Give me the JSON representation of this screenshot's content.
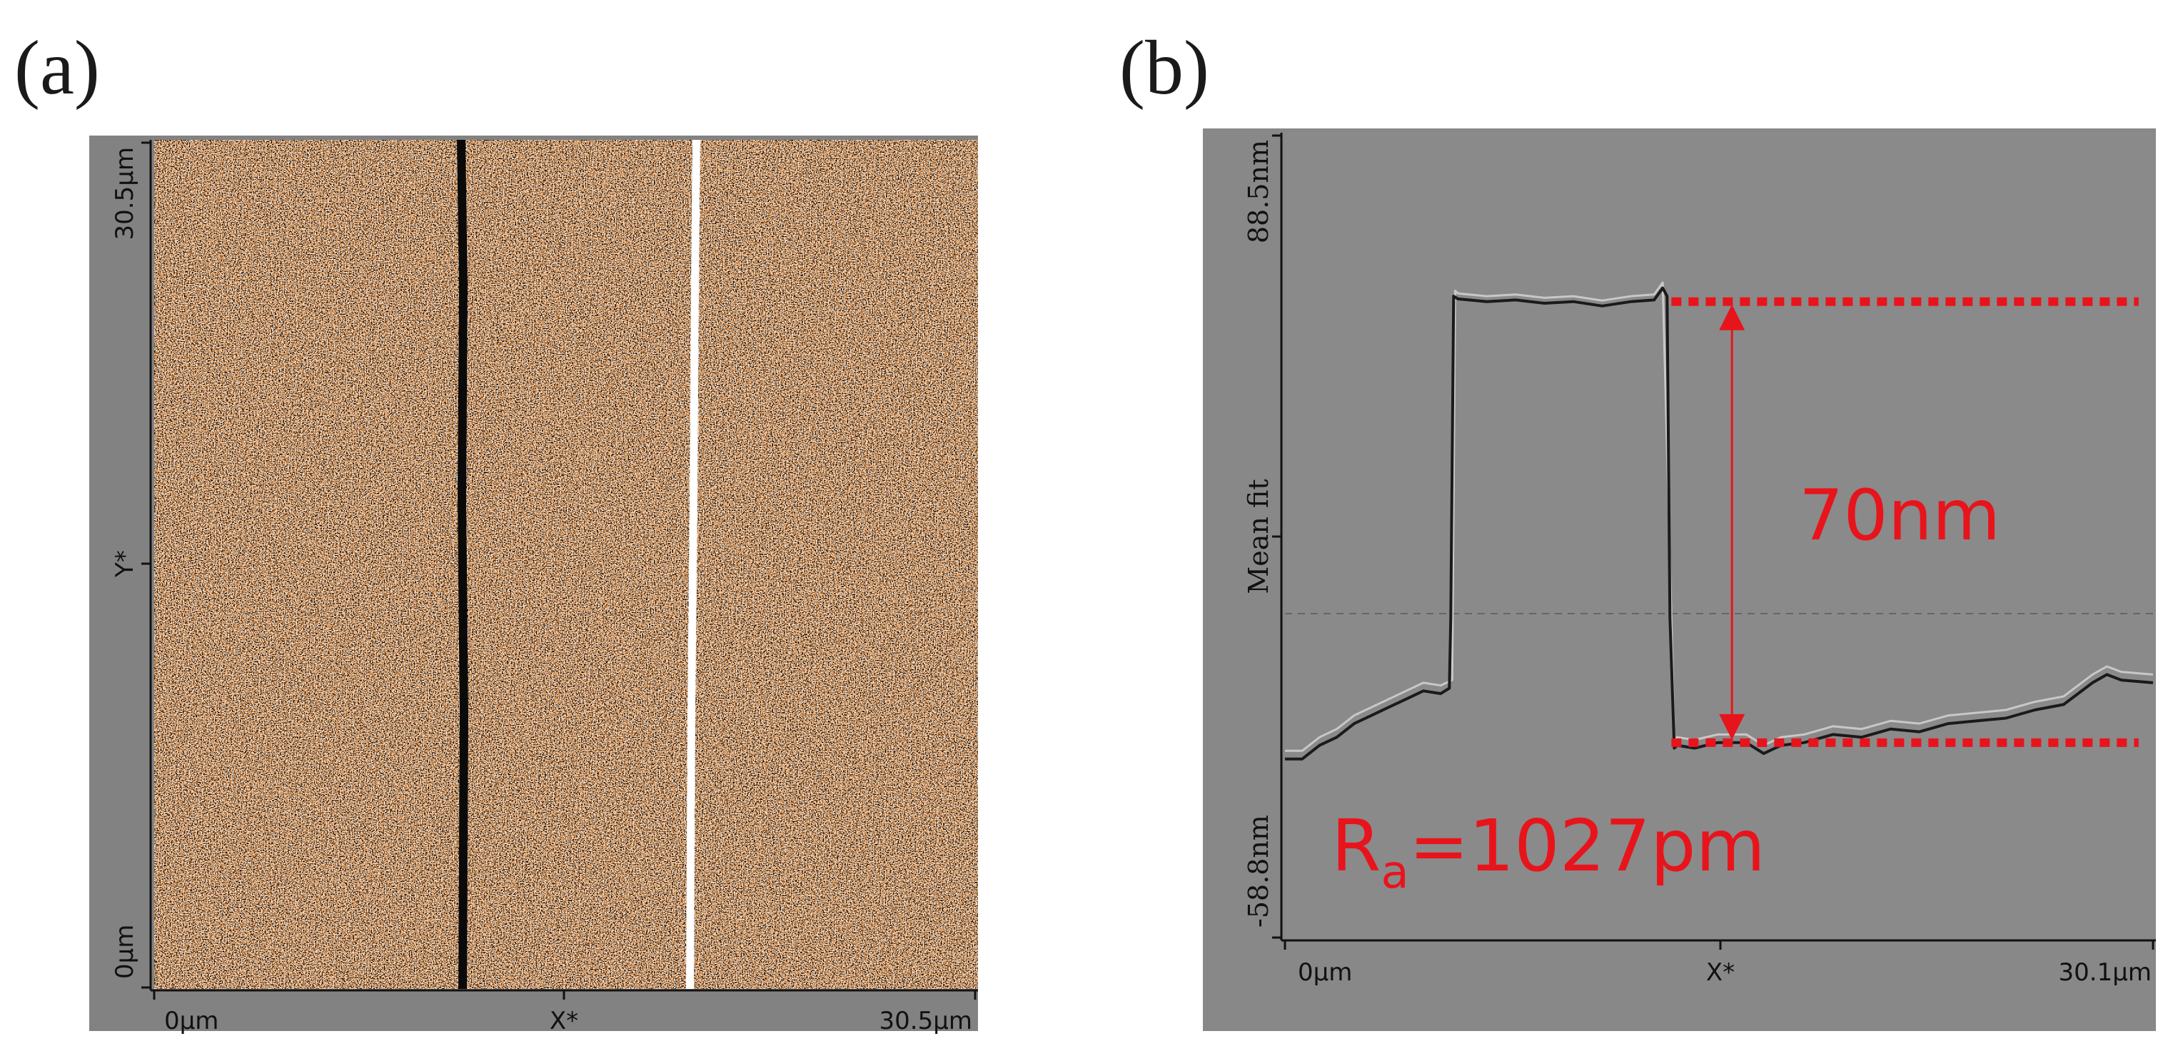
{
  "figure": {
    "panel_a_label": "(a)",
    "panel_b_label": "(b)"
  },
  "panel_a": {
    "colors": {
      "surface": "#e0893a",
      "frame": "#828282"
    },
    "x_axis": {
      "start": "0µm",
      "mid": "X*",
      "end": "30.5µm"
    },
    "y_axis": {
      "start": "0µm",
      "mid": "Y*",
      "end": "30.5µm"
    }
  },
  "panel_b": {
    "annotations": {
      "step_height": "70nm",
      "roughness_prefix": "R",
      "roughness_sub": "a",
      "roughness_value": "=1027pm"
    },
    "colors": {
      "plot_bg": "#8a8a8a",
      "frame": "#888888",
      "annotation": "#e8141c"
    }
  },
  "chart_data": {
    "type": "line",
    "title": "",
    "xlabel": "X*",
    "ylabel": "Mean fit",
    "xlim": [
      0,
      30.1
    ],
    "ylim": [
      -58.8,
      88.5
    ],
    "x_tick_labels": [
      "0µm",
      "X*",
      "30.1µm"
    ],
    "y_tick_labels": [
      "-58.8nm",
      "Mean fit",
      "88.5nm"
    ],
    "grid": false,
    "series": [
      {
        "x": [
          0,
          0.6,
          1.2,
          1.8,
          2.4,
          3.0,
          3.6,
          4.2,
          4.8,
          5.4,
          5.7,
          5.75,
          5.85,
          6.0,
          7.0,
          8.0,
          9.0,
          10.0,
          11.0,
          12.0,
          12.8,
          13.1,
          13.25,
          13.35,
          13.5,
          13.6,
          14.2,
          15.0,
          16.0,
          16.6,
          17.2,
          18.0,
          19.0,
          20.0,
          21.0,
          22.0,
          23.0,
          24.0,
          25.0,
          26.0,
          27.0,
          28.0,
          28.5,
          29.0,
          30.1
        ],
        "y": [
          -26,
          -26,
          -23.5,
          -22,
          -19.5,
          -18,
          -16.5,
          -15,
          -13.5,
          -14,
          -13,
          0,
          59,
          58.5,
          58,
          58.3,
          57.7,
          58,
          57.2,
          58,
          58.3,
          60.5,
          59,
          0,
          -24,
          -23.5,
          -24,
          -23,
          -23,
          -25,
          -23.5,
          -23,
          -21.5,
          -22,
          -20.5,
          -21,
          -19.5,
          -19,
          -18.5,
          -17,
          -16,
          -12,
          -10.5,
          -11.5,
          -12
        ]
      },
      {
        "x": [
          0,
          0.6,
          1.2,
          1.8,
          2.4,
          3.0,
          3.6,
          4.2,
          4.8,
          5.4,
          5.8,
          5.9,
          6.0,
          7.0,
          8.0,
          9.0,
          10.0,
          11.0,
          12.0,
          12.8,
          13.1,
          13.4,
          13.5,
          13.6,
          14.2,
          15.0,
          16.0,
          16.6,
          17.2,
          18.0,
          19.0,
          20.0,
          21.0,
          22.0,
          23.0,
          24.0,
          25.0,
          26.0,
          27.0,
          28.0,
          28.5,
          29.0,
          30.1
        ],
        "y": [
          -24.5,
          -24.5,
          -22,
          -20.5,
          -18,
          -16.5,
          -15,
          -13.5,
          -12,
          -12.5,
          -11.5,
          60,
          59.5,
          59,
          59.3,
          58.7,
          59,
          58.2,
          59,
          59.3,
          61.5,
          0,
          -22.5,
          -22,
          -22.5,
          -21.5,
          -21.5,
          -23.5,
          -22,
          -21.5,
          -20,
          -20.5,
          -19,
          -19.5,
          -18,
          -17.5,
          -17,
          -15.5,
          -14.5,
          -10.5,
          -9,
          -10,
          -10.5
        ]
      }
    ],
    "annotations": [
      {
        "text": "70nm",
        "y_top": 58,
        "y_bottom": -23
      },
      {
        "text": "Ra=1027pm"
      }
    ]
  }
}
